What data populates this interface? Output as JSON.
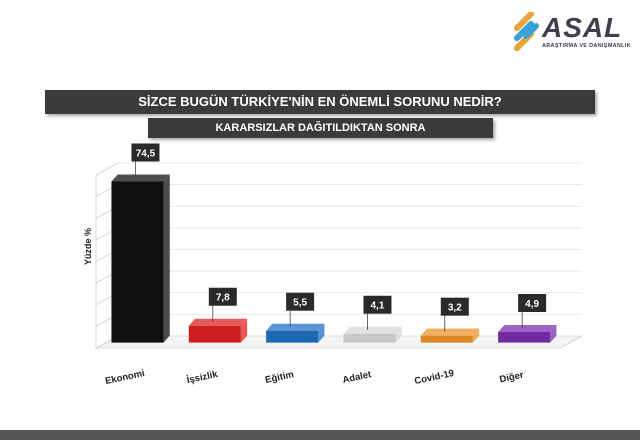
{
  "brand": {
    "name": "ASAL",
    "tagline": "ARAŞTIRMA VE DANIŞMANLIK",
    "colors": [
      "#e8a33a",
      "#3aa0d8",
      "#3d3f4c"
    ]
  },
  "chart_data": {
    "type": "bar",
    "title": "SİZCE BUGÜN TÜRKİYE'NİN EN ÖNEMLİ SORUNU NEDİR?",
    "subtitle": "KARARSIZLAR DAĞITILDIKTAN SONRA",
    "xlabel": "",
    "ylabel": "Yüzde %",
    "categories": [
      "Ekonomi",
      "İşsizlik",
      "Eğitim",
      "Adalet",
      "Covid-19",
      "Diğer"
    ],
    "values": [
      74.5,
      7.8,
      5.5,
      4.1,
      3.2,
      4.9
    ],
    "value_labels": [
      "74,5",
      "7,8",
      "5,5",
      "4,1",
      "3,2",
      "4,9"
    ],
    "colors": [
      "#111111",
      "#e02020",
      "#1f6fc4",
      "#d8d8d8",
      "#f0922a",
      "#7b2fb0"
    ],
    "ylim": [
      0,
      80
    ],
    "grid": true,
    "style": "3d"
  }
}
